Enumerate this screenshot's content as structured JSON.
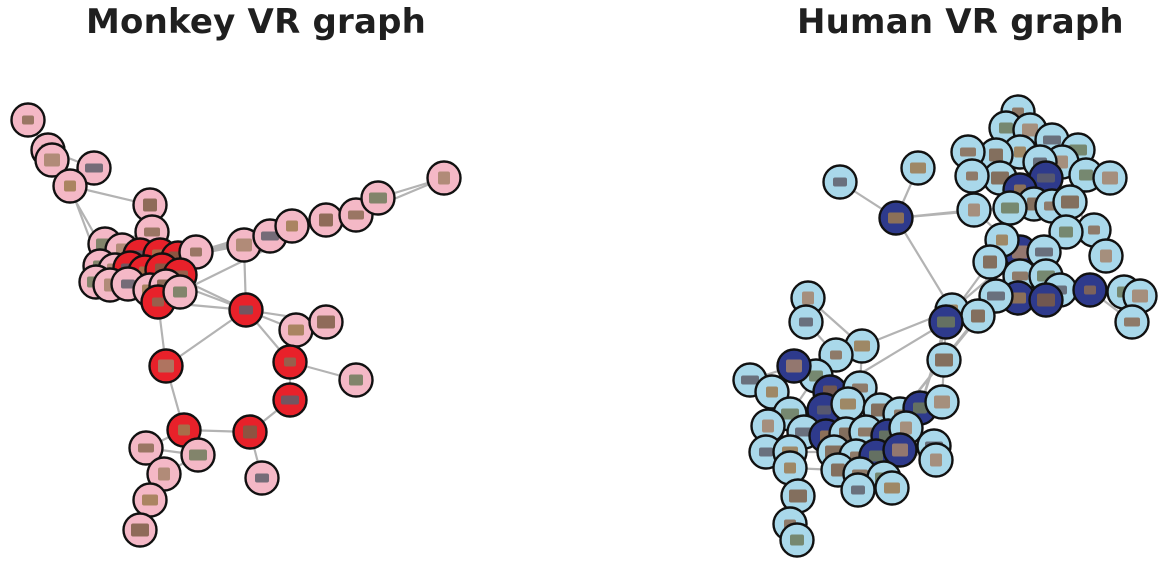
{
  "titles": {
    "left": "Monkey VR graph",
    "right": "Human VR graph"
  },
  "colors": {
    "monkey_node": "#f4b8c6",
    "monkey_highlight": "#e8212a",
    "human_node": "#a9d8ea",
    "human_highlight": "#2e3a8c",
    "edge": "#b3b3b3",
    "node_border": "#111111"
  },
  "graphs": [
    {
      "id": "monkey",
      "node_count": 48,
      "highlighted_count": 12
    },
    {
      "id": "human",
      "node_count": 86,
      "highlighted_count": 18
    }
  ]
}
